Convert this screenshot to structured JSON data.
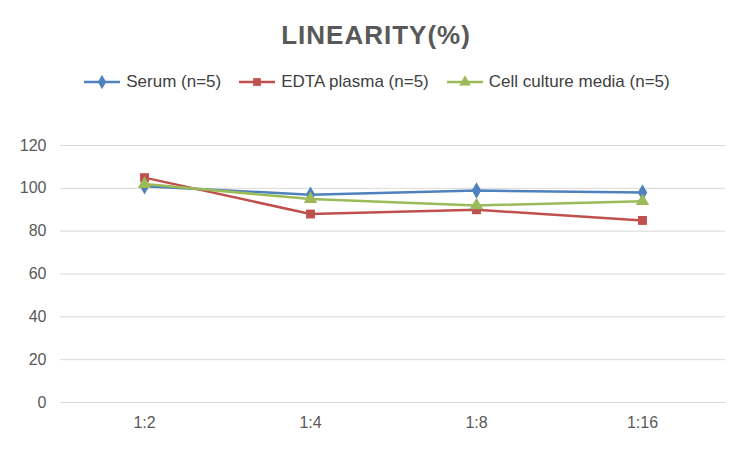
{
  "chart_data": {
    "type": "line",
    "title": "LINEARITY(%)",
    "categories": [
      "1:2",
      "1:4",
      "1:8",
      "1:16"
    ],
    "series": [
      {
        "name": "Serum (n=5)",
        "color": "#4f81bd",
        "marker": "diamond",
        "values": [
          101,
          97,
          99,
          98
        ]
      },
      {
        "name": "EDTA plasma (n=5)",
        "color": "#c0504d",
        "marker": "square",
        "values": [
          105,
          88,
          90,
          85
        ]
      },
      {
        "name": "Cell culture media (n=5)",
        "color": "#9bbb59",
        "marker": "triangle",
        "values": [
          102,
          95,
          92,
          94
        ]
      }
    ],
    "ylim": [
      0,
      120
    ],
    "yticks": [
      0,
      20,
      40,
      60,
      80,
      100,
      120
    ],
    "grid": true,
    "legend": "top"
  }
}
